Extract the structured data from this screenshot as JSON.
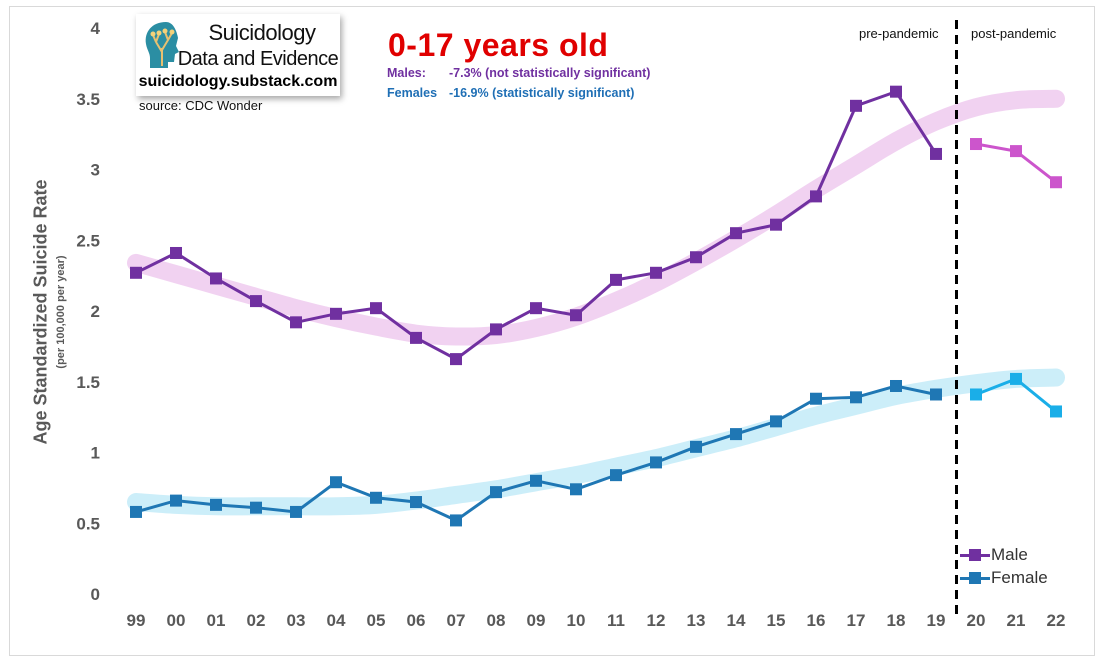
{
  "header": {
    "logo_line1": "Suicidology",
    "logo_line2": "Data and Evidence",
    "logo_url": "suicidology.substack.com",
    "source": "source: CDC Wonder",
    "title": "0-17 years old",
    "male_label": "Males:",
    "male_stat": "-7.3% (not statistically significant)",
    "female_label": "Females",
    "female_stat": "-16.9% (statistically significant)",
    "pre_label": "pre-pandemic",
    "post_label": "post-pandemic"
  },
  "colors": {
    "male": "#7030a0",
    "male_post": "#cc55cc",
    "male_trend": "#f0cdf0",
    "female": "#1f77b4",
    "female_post": "#1aaee8",
    "female_trend": "#c6ecf8",
    "axis_text": "#595959",
    "title": "#e00000"
  },
  "chart_data": {
    "type": "line",
    "title": "0-17 years old",
    "ylabel": "Age Standardized Suicide Rate",
    "ylabel_sub": "(per 100,000 per year)",
    "xlabel": "",
    "ylim": [
      0,
      4
    ],
    "yticks": [
      "0",
      "0.5",
      "1",
      "1.5",
      "2",
      "2.5",
      "3",
      "3.5",
      "4"
    ],
    "categories": [
      "99",
      "00",
      "01",
      "02",
      "03",
      "04",
      "05",
      "06",
      "07",
      "08",
      "09",
      "10",
      "11",
      "12",
      "13",
      "14",
      "15",
      "16",
      "17",
      "18",
      "19",
      "20",
      "21",
      "22"
    ],
    "pandemic_divider_between": [
      "19",
      "20"
    ],
    "series": [
      {
        "name": "Male",
        "values": [
          2.27,
          2.41,
          2.23,
          2.07,
          1.92,
          1.98,
          2.02,
          1.81,
          1.66,
          1.87,
          2.02,
          1.97,
          2.22,
          2.27,
          2.38,
          2.55,
          2.61,
          2.81,
          3.45,
          3.55,
          3.11,
          3.18,
          3.13,
          2.91
        ]
      },
      {
        "name": "Female",
        "values": [
          0.58,
          0.66,
          0.63,
          0.61,
          0.58,
          0.79,
          0.68,
          0.65,
          0.52,
          0.72,
          0.8,
          0.74,
          0.84,
          0.93,
          1.04,
          1.13,
          1.22,
          1.38,
          1.39,
          1.47,
          1.41,
          1.41,
          1.52,
          1.29
        ]
      }
    ],
    "trend_bands": [
      {
        "series": "Male",
        "values": [
          2.34,
          2.26,
          2.18,
          2.1,
          2.02,
          1.95,
          1.89,
          1.84,
          1.82,
          1.83,
          1.88,
          1.96,
          2.07,
          2.2,
          2.35,
          2.51,
          2.68,
          2.86,
          3.03,
          3.2,
          3.34,
          3.44,
          3.49,
          3.5
        ]
      },
      {
        "series": "Female",
        "values": [
          0.65,
          0.63,
          0.62,
          0.62,
          0.62,
          0.62,
          0.63,
          0.66,
          0.7,
          0.74,
          0.79,
          0.84,
          0.9,
          0.96,
          1.03,
          1.1,
          1.18,
          1.26,
          1.33,
          1.4,
          1.45,
          1.49,
          1.52,
          1.53
        ]
      }
    ],
    "legend_position": "bottom-right",
    "grid": false
  }
}
